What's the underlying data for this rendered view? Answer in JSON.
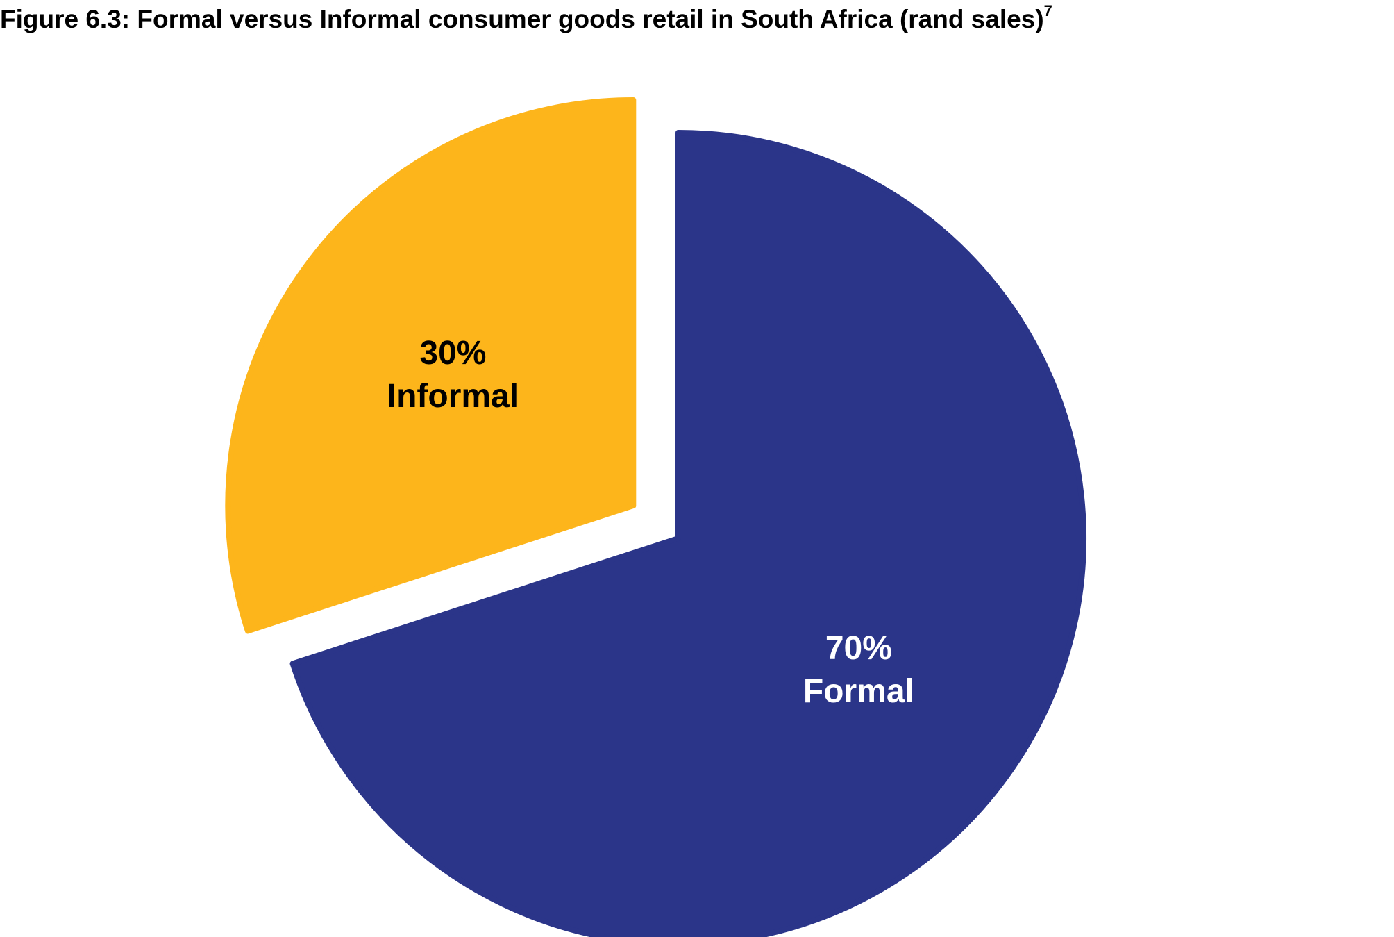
{
  "chart_data": {
    "type": "pie",
    "title": "Figure 6.3: Formal versus Informal consumer goods retail in South Africa (rand sales)",
    "title_footnote": "7",
    "slices": [
      {
        "category": "Formal",
        "value": 70,
        "value_label": "70%",
        "color": "#2B3589",
        "label_color": "#FFFFFF",
        "exploded": false
      },
      {
        "category": "Informal",
        "value": 30,
        "value_label": "30%",
        "color": "#FDB51B",
        "label_color": "#000000",
        "exploded": true
      }
    ],
    "legend": "none",
    "start_angle_deg": 0,
    "direction": "clockwise"
  }
}
